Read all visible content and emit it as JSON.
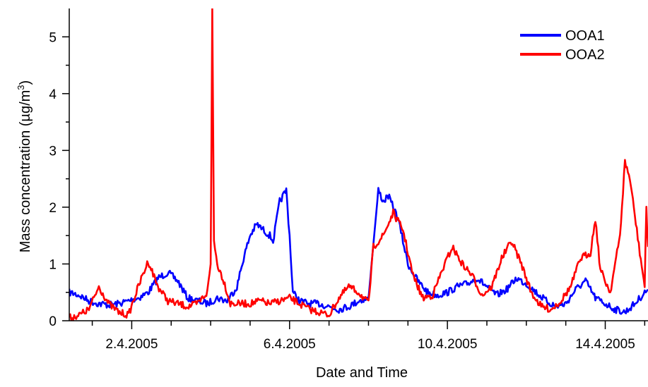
{
  "chart_data": {
    "type": "line",
    "xlabel": "Date and Time",
    "ylabel_main": "Mass concentration (µg/m",
    "ylabel_sup": "3",
    "ylabel_close": ")",
    "xlim": [
      "2005-03-31T10:00",
      "2005-04-15T02:00"
    ],
    "ylim": [
      0,
      5.5
    ],
    "x_ticks_major": [
      "2005-04-02",
      "2005-04-06",
      "2005-04-10",
      "2005-04-14"
    ],
    "x_tick_labels": [
      "2.4.2005",
      "6.4.2005",
      "10.4.2005",
      "14.4.2005"
    ],
    "x_ticks_minor": [
      "2005-04-01",
      "2005-04-03",
      "2005-04-04",
      "2005-04-05",
      "2005-04-07",
      "2005-04-08",
      "2005-04-09",
      "2005-04-11",
      "2005-04-12",
      "2005-04-13",
      "2005-04-15"
    ],
    "y_ticks_major": [
      0,
      1,
      2,
      3,
      4,
      5
    ],
    "y_tick_labels": [
      "0",
      "1",
      "2",
      "3",
      "4",
      "5"
    ],
    "y_ticks_minor": [
      0.5,
      1.5,
      2.5,
      3.5,
      4.5
    ],
    "legend": {
      "placement": "top-right"
    },
    "series": [
      {
        "name": "OOA1",
        "color": "#0000ff",
        "points": [
          [
            "2005-03-31T10:00",
            0.5
          ],
          [
            "2005-03-31T16:00",
            0.45
          ],
          [
            "2005-03-31T22:00",
            0.35
          ],
          [
            "2005-04-01T04:00",
            0.3
          ],
          [
            "2005-04-01T10:00",
            0.28
          ],
          [
            "2005-04-01T16:00",
            0.3
          ],
          [
            "2005-04-01T22:00",
            0.35
          ],
          [
            "2005-04-02T04:00",
            0.4
          ],
          [
            "2005-04-02T10:00",
            0.5
          ],
          [
            "2005-04-02T16:00",
            0.75
          ],
          [
            "2005-04-02T22:00",
            0.85
          ],
          [
            "2005-04-03T04:00",
            0.7
          ],
          [
            "2005-04-03T10:00",
            0.4
          ],
          [
            "2005-04-03T16:00",
            0.35
          ],
          [
            "2005-04-03T22:00",
            0.3
          ],
          [
            "2005-04-04T04:00",
            0.4
          ],
          [
            "2005-04-04T10:00",
            0.35
          ],
          [
            "2005-04-04T16:00",
            0.6
          ],
          [
            "2005-04-04T20:00",
            1.1
          ],
          [
            "2005-04-05T00:00",
            1.5
          ],
          [
            "2005-04-05T04:00",
            1.7
          ],
          [
            "2005-04-05T08:00",
            1.6
          ],
          [
            "2005-04-05T12:00",
            1.5
          ],
          [
            "2005-04-05T14:00",
            1.4
          ],
          [
            "2005-04-05T18:00",
            2.1
          ],
          [
            "2005-04-05T22:00",
            2.3
          ],
          [
            "2005-04-06T00:00",
            1.5
          ],
          [
            "2005-04-06T02:00",
            0.5
          ],
          [
            "2005-04-06T06:00",
            0.35
          ],
          [
            "2005-04-06T12:00",
            0.3
          ],
          [
            "2005-04-06T18:00",
            0.3
          ],
          [
            "2005-04-07T00:00",
            0.25
          ],
          [
            "2005-04-07T06:00",
            0.2
          ],
          [
            "2005-04-07T12:00",
            0.25
          ],
          [
            "2005-04-07T18:00",
            0.35
          ],
          [
            "2005-04-08T00:00",
            0.4
          ],
          [
            "2005-04-08T06:00",
            2.3
          ],
          [
            "2005-04-08T09:00",
            2.1
          ],
          [
            "2005-04-08T12:00",
            2.2
          ],
          [
            "2005-04-08T18:00",
            1.8
          ],
          [
            "2005-04-09T00:00",
            1.0
          ],
          [
            "2005-04-09T06:00",
            0.7
          ],
          [
            "2005-04-09T12:00",
            0.5
          ],
          [
            "2005-04-09T18:00",
            0.45
          ],
          [
            "2005-04-10T00:00",
            0.5
          ],
          [
            "2005-04-10T06:00",
            0.6
          ],
          [
            "2005-04-10T12:00",
            0.65
          ],
          [
            "2005-04-10T18:00",
            0.75
          ],
          [
            "2005-04-11T00:00",
            0.6
          ],
          [
            "2005-04-11T06:00",
            0.45
          ],
          [
            "2005-04-11T12:00",
            0.55
          ],
          [
            "2005-04-11T18:00",
            0.75
          ],
          [
            "2005-04-12T00:00",
            0.65
          ],
          [
            "2005-04-12T06:00",
            0.5
          ],
          [
            "2005-04-12T12:00",
            0.35
          ],
          [
            "2005-04-12T18:00",
            0.25
          ],
          [
            "2005-04-13T00:00",
            0.3
          ],
          [
            "2005-04-13T06:00",
            0.55
          ],
          [
            "2005-04-13T12:00",
            0.7
          ],
          [
            "2005-04-13T18:00",
            0.4
          ],
          [
            "2005-04-14T00:00",
            0.3
          ],
          [
            "2005-04-14T06:00",
            0.2
          ],
          [
            "2005-04-14T12:00",
            0.15
          ],
          [
            "2005-04-14T18:00",
            0.3
          ],
          [
            "2005-04-15T00:00",
            0.5
          ],
          [
            "2005-04-15T02:00",
            0.55
          ]
        ]
      },
      {
        "name": "OOA2",
        "color": "#ff0000",
        "points": [
          [
            "2005-03-31T10:00",
            0.05
          ],
          [
            "2005-03-31T16:00",
            0.1
          ],
          [
            "2005-03-31T22:00",
            0.2
          ],
          [
            "2005-04-01T04:00",
            0.6
          ],
          [
            "2005-04-01T10:00",
            0.3
          ],
          [
            "2005-04-01T16:00",
            0.15
          ],
          [
            "2005-04-01T22:00",
            0.1
          ],
          [
            "2005-04-02T04:00",
            0.6
          ],
          [
            "2005-04-02T10:00",
            1.05
          ],
          [
            "2005-04-02T16:00",
            0.6
          ],
          [
            "2005-04-02T22:00",
            0.35
          ],
          [
            "2005-04-03T04:00",
            0.3
          ],
          [
            "2005-04-03T10:00",
            0.25
          ],
          [
            "2005-04-03T16:00",
            0.3
          ],
          [
            "2005-04-03T22:00",
            0.5
          ],
          [
            "2005-04-04T00:00",
            1.0
          ],
          [
            "2005-04-04T01:00",
            5.5
          ],
          [
            "2005-04-04T02:00",
            1.4
          ],
          [
            "2005-04-04T04:00",
            1.0
          ],
          [
            "2005-04-04T08:00",
            0.7
          ],
          [
            "2005-04-04T12:00",
            0.3
          ],
          [
            "2005-04-04T18:00",
            0.3
          ],
          [
            "2005-04-05T00:00",
            0.3
          ],
          [
            "2005-04-05T06:00",
            0.35
          ],
          [
            "2005-04-05T12:00",
            0.3
          ],
          [
            "2005-04-05T18:00",
            0.35
          ],
          [
            "2005-04-06T00:00",
            0.4
          ],
          [
            "2005-04-06T06:00",
            0.3
          ],
          [
            "2005-04-06T12:00",
            0.2
          ],
          [
            "2005-04-06T18:00",
            0.15
          ],
          [
            "2005-04-07T00:00",
            0.1
          ],
          [
            "2005-04-07T06:00",
            0.4
          ],
          [
            "2005-04-07T12:00",
            0.6
          ],
          [
            "2005-04-07T18:00",
            0.5
          ],
          [
            "2005-04-08T00:00",
            0.3
          ],
          [
            "2005-04-08T03:00",
            1.3
          ],
          [
            "2005-04-08T09:00",
            1.5
          ],
          [
            "2005-04-08T15:00",
            1.9
          ],
          [
            "2005-04-08T21:00",
            1.6
          ],
          [
            "2005-04-09T03:00",
            0.8
          ],
          [
            "2005-04-09T09:00",
            0.4
          ],
          [
            "2005-04-09T15:00",
            0.45
          ],
          [
            "2005-04-09T21:00",
            0.9
          ],
          [
            "2005-04-10T03:00",
            1.3
          ],
          [
            "2005-04-10T09:00",
            1.0
          ],
          [
            "2005-04-10T15:00",
            0.8
          ],
          [
            "2005-04-10T21:00",
            0.45
          ],
          [
            "2005-04-11T03:00",
            0.6
          ],
          [
            "2005-04-11T09:00",
            1.1
          ],
          [
            "2005-04-11T15:00",
            1.4
          ],
          [
            "2005-04-11T21:00",
            1.0
          ],
          [
            "2005-04-12T03:00",
            0.5
          ],
          [
            "2005-04-12T09:00",
            0.25
          ],
          [
            "2005-04-12T15:00",
            0.2
          ],
          [
            "2005-04-12T21:00",
            0.35
          ],
          [
            "2005-04-13T03:00",
            0.6
          ],
          [
            "2005-04-13T09:00",
            1.1
          ],
          [
            "2005-04-13T15:00",
            1.2
          ],
          [
            "2005-04-13T18:00",
            1.8
          ],
          [
            "2005-04-13T21:00",
            0.9
          ],
          [
            "2005-04-14T03:00",
            0.5
          ],
          [
            "2005-04-14T09:00",
            1.5
          ],
          [
            "2005-04-14T12:00",
            2.8
          ],
          [
            "2005-04-14T15:00",
            2.5
          ],
          [
            "2005-04-14T21:00",
            1.2
          ],
          [
            "2005-04-15T00:00",
            0.6
          ],
          [
            "2005-04-15T01:00",
            2.0
          ],
          [
            "2005-04-15T02:00",
            1.3
          ]
        ]
      }
    ]
  }
}
